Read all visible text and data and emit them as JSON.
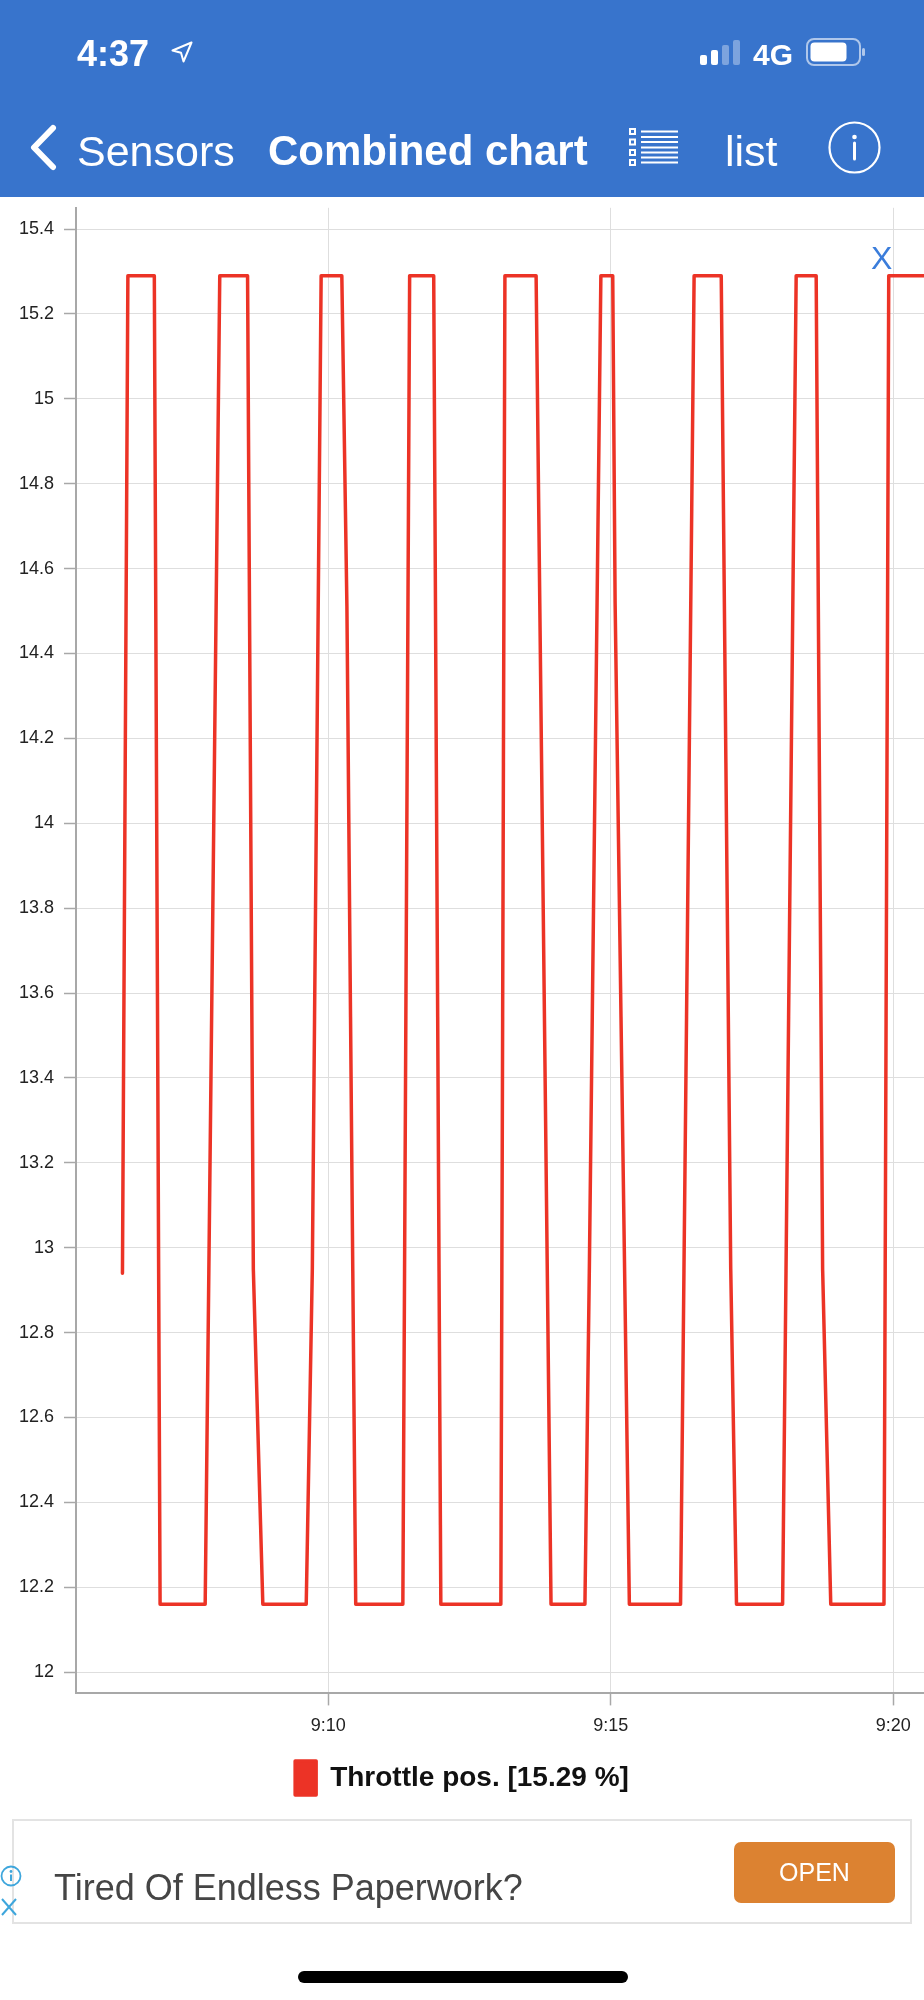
{
  "chart_data": {
    "type": "line",
    "title": "Combined chart",
    "annotations": [
      "4:37",
      "4G",
      "Sensors",
      "list",
      "X",
      "Tired Of Endless Paperwork?",
      "OPEN"
    ],
    "x": [
      9.106,
      9.1076,
      9.1154,
      9.1171,
      9.1304,
      9.1347,
      9.1429,
      9.1446,
      9.1474,
      9.1602,
      9.162,
      9.1646,
      9.1707,
      9.1722,
      9.1748,
      9.1887,
      9.1907,
      9.1978,
      9.1999,
      9.2176,
      9.2188,
      9.228,
      9.2324,
      9.2424,
      9.2437,
      9.2471,
      9.2506,
      9.2513,
      9.2555,
      9.2706,
      9.2746,
      9.2826,
      9.2854,
      9.2871,
      9.3007,
      9.3047,
      9.3106,
      9.3125,
      9.3149,
      9.3306,
      9.332,
      9.3424
    ],
    "series": [
      {
        "name": "Throttle pos. [15.29 %]",
        "color": "#ec3326",
        "values": [
          12.94,
          15.29,
          15.29,
          12.16,
          12.16,
          15.29,
          15.29,
          12.95,
          12.16,
          12.16,
          12.95,
          15.29,
          15.29,
          14.51,
          12.16,
          12.16,
          15.29,
          15.29,
          12.16,
          12.16,
          15.29,
          15.29,
          12.16,
          12.16,
          12.95,
          15.29,
          15.29,
          14.52,
          12.16,
          12.16,
          15.29,
          15.29,
          12.95,
          12.16,
          12.16,
          15.29,
          15.29,
          12.95,
          12.16,
          12.16,
          15.29,
          15.29
        ]
      }
    ],
    "xlim": [
      9.0923,
      9.3424
    ],
    "xticks": [
      {
        "value": 9.16667,
        "label": "9:10"
      },
      {
        "value": 9.25,
        "label": "9:15"
      },
      {
        "value": 9.33333,
        "label": "9:20"
      }
    ],
    "ylim": [
      11.95,
      15.45
    ],
    "yticks": [
      12,
      12.2,
      12.4,
      12.6,
      12.8,
      13,
      13.2,
      13.4,
      13.6,
      13.8,
      14,
      14.2,
      14.4,
      14.6,
      14.8,
      15,
      15.2,
      15.4
    ],
    "grid": true,
    "legend": "bottom",
    "marker": "none",
    "line_style": "solid"
  }
}
